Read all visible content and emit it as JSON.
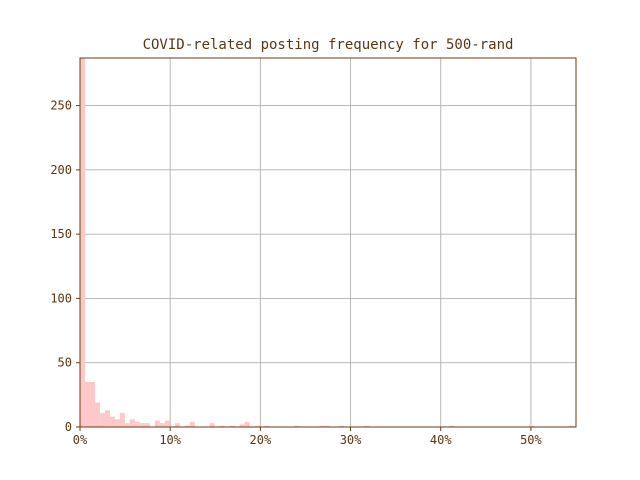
{
  "chart_data": {
    "type": "histogram",
    "title": "COVID-related posting frequency for 500-rand",
    "xlabel": "",
    "ylabel": "",
    "xlim": [
      0,
      0.55
    ],
    "ylim": [
      0,
      287
    ],
    "x_ticks": [
      {
        "value": 0.0,
        "label": "0%"
      },
      {
        "value": 0.1,
        "label": "10%"
      },
      {
        "value": 0.2,
        "label": "20%"
      },
      {
        "value": 0.3,
        "label": "30%"
      },
      {
        "value": 0.4,
        "label": "40%"
      },
      {
        "value": 0.5,
        "label": "50%"
      }
    ],
    "y_ticks": [
      {
        "value": 0,
        "label": "0"
      },
      {
        "value": 50,
        "label": "50"
      },
      {
        "value": 100,
        "label": "100"
      },
      {
        "value": 150,
        "label": "150"
      },
      {
        "value": 200,
        "label": "200"
      },
      {
        "value": 250,
        "label": "250"
      }
    ],
    "grid": true,
    "bar_color": "#ffc8c8",
    "frame_color": "#6b3a12",
    "text_color": "#5a3512",
    "bin_width": 0.00553,
    "bins": [
      {
        "x": 0.0,
        "count": 287
      },
      {
        "x": 0.0055,
        "count": 35
      },
      {
        "x": 0.0111,
        "count": 35
      },
      {
        "x": 0.0166,
        "count": 19
      },
      {
        "x": 0.0221,
        "count": 11
      },
      {
        "x": 0.0277,
        "count": 13
      },
      {
        "x": 0.0332,
        "count": 8
      },
      {
        "x": 0.0387,
        "count": 6
      },
      {
        "x": 0.0442,
        "count": 11
      },
      {
        "x": 0.0498,
        "count": 3
      },
      {
        "x": 0.0553,
        "count": 6
      },
      {
        "x": 0.0608,
        "count": 4
      },
      {
        "x": 0.0664,
        "count": 3
      },
      {
        "x": 0.0719,
        "count": 3
      },
      {
        "x": 0.083,
        "count": 5
      },
      {
        "x": 0.0885,
        "count": 3
      },
      {
        "x": 0.094,
        "count": 5
      },
      {
        "x": 0.1051,
        "count": 3
      },
      {
        "x": 0.1161,
        "count": 1
      },
      {
        "x": 0.1217,
        "count": 4
      },
      {
        "x": 0.1438,
        "count": 3
      },
      {
        "x": 0.1549,
        "count": 1
      },
      {
        "x": 0.1659,
        "count": 1
      },
      {
        "x": 0.177,
        "count": 2
      },
      {
        "x": 0.1825,
        "count": 4
      },
      {
        "x": 0.1936,
        "count": 1
      },
      {
        "x": 0.2046,
        "count": 1
      },
      {
        "x": 0.2378,
        "count": 1
      },
      {
        "x": 0.2655,
        "count": 1
      },
      {
        "x": 0.271,
        "count": 1
      },
      {
        "x": 0.2876,
        "count": 1
      },
      {
        "x": 0.3153,
        "count": 1
      },
      {
        "x": 0.4093,
        "count": 1
      },
      {
        "x": 0.4978,
        "count": 1
      },
      {
        "x": 0.542,
        "count": 1
      }
    ]
  }
}
